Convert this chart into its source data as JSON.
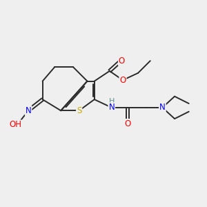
{
  "bg_color": "#efefef",
  "bond_color": "#2a2a2a",
  "atom_colors": {
    "O": "#ff0000",
    "N": "#0000ff",
    "S": "#ccaa00",
    "H_teal": "#5f8f8f",
    "C": "#2a2a2a"
  }
}
